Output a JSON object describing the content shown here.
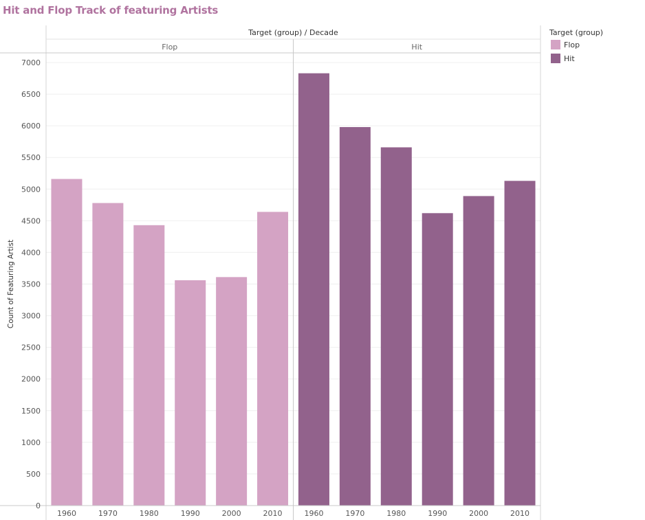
{
  "title": "Hit and Flop Track of featuring Artists",
  "header": {
    "column_title": "Target (group)  /  Decade"
  },
  "legend": {
    "title": "Target (group)",
    "items": [
      {
        "label": "Flop",
        "color": "#d4a3c4"
      },
      {
        "label": "Hit",
        "color": "#92628c"
      }
    ]
  },
  "chart_data": {
    "type": "bar",
    "title": "Hit and Flop Track of featuring Artists",
    "xlabel": "",
    "ylabel": "Count of Featuring Artist",
    "ylim": [
      0,
      7000
    ],
    "yticks": [
      0,
      500,
      1000,
      1500,
      2000,
      2500,
      3000,
      3500,
      4000,
      4500,
      5000,
      5500,
      6000,
      6500,
      7000
    ],
    "grid": true,
    "legend_position": "top-right",
    "categories": [
      "1960",
      "1970",
      "1980",
      "1990",
      "2000",
      "2010"
    ],
    "series": [
      {
        "name": "Flop",
        "color": "#d4a3c4",
        "values": [
          5160,
          4780,
          4430,
          3560,
          3610,
          4640
        ]
      },
      {
        "name": "Hit",
        "color": "#92628c",
        "values": [
          6830,
          5980,
          5660,
          4620,
          4890,
          5130
        ]
      }
    ]
  }
}
